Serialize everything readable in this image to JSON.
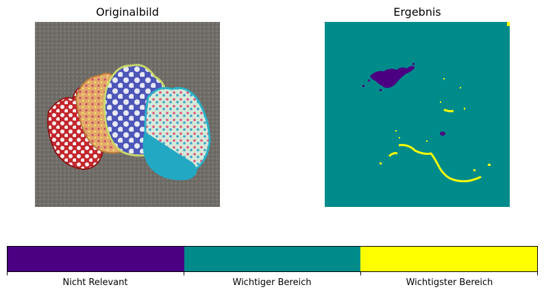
{
  "panels": {
    "left_title": "Originalbild",
    "right_title": "Ergebnis"
  },
  "colorbar": {
    "segments": [
      {
        "label": "Nicht Relevant",
        "color": "#4b0082"
      },
      {
        "label": "Wichtiger Bereich",
        "color": "#008b8b"
      },
      {
        "label": "Wichtigster Bereich",
        "color": "#ffff00"
      }
    ]
  },
  "colors": {
    "carpet": "#6f6c67",
    "background_segment": "#008b8b",
    "not_relevant": "#4b0082",
    "most_important": "#ffff00"
  }
}
